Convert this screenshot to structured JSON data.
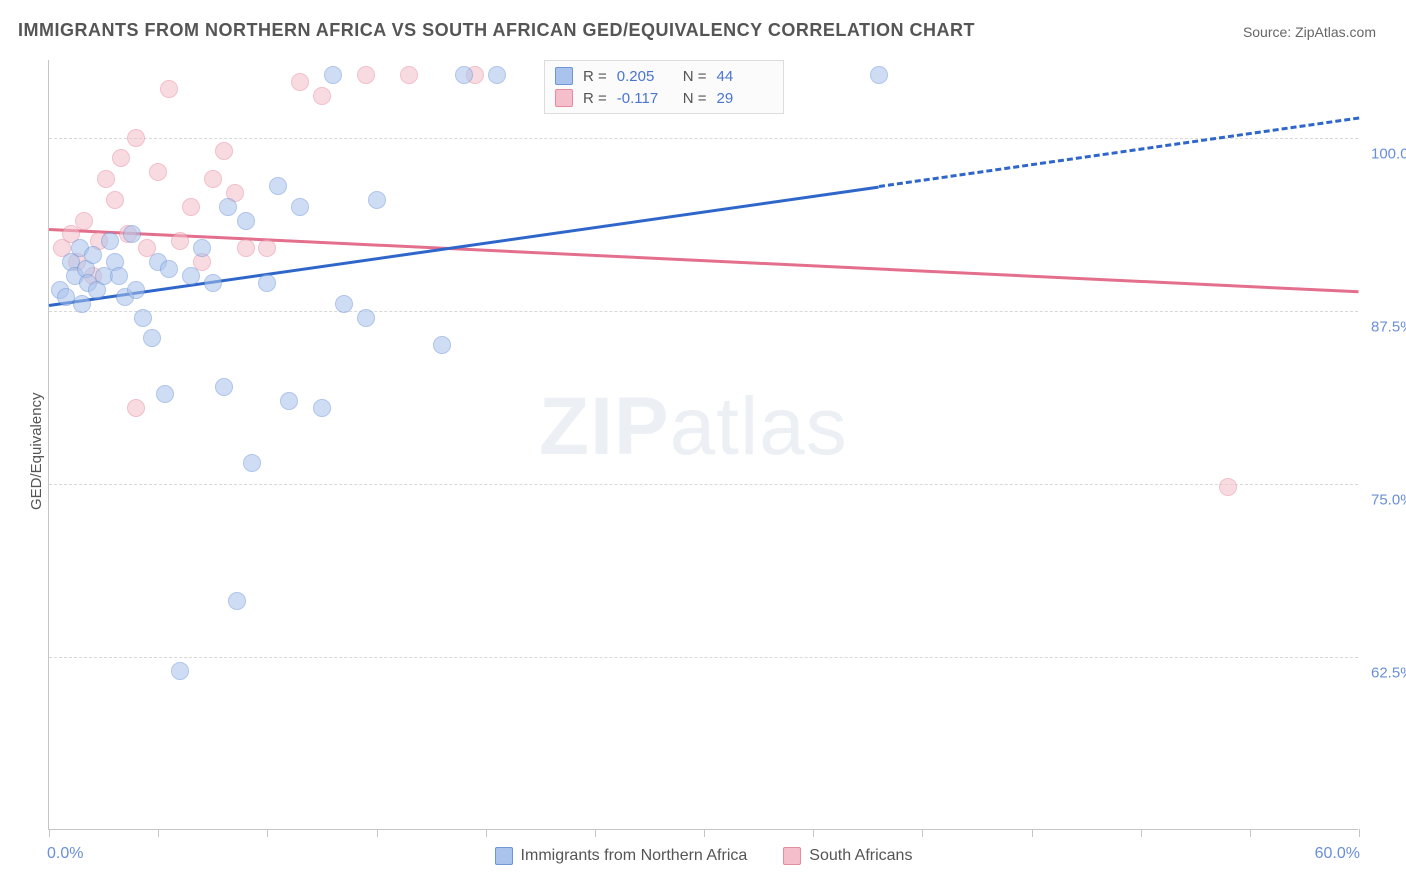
{
  "title": "IMMIGRANTS FROM NORTHERN AFRICA VS SOUTH AFRICAN GED/EQUIVALENCY CORRELATION CHART",
  "source_prefix": "Source: ",
  "source_name": "ZipAtlas.com",
  "chart": {
    "type": "scatter",
    "x_axis": {
      "min": 0.0,
      "max": 60.0,
      "label_min": "0.0%",
      "label_max": "60.0%",
      "ticks": [
        0,
        5,
        10,
        15,
        20,
        25,
        30,
        35,
        40,
        45,
        50,
        55,
        60
      ]
    },
    "y_axis": {
      "min": 50.0,
      "max": 105.6,
      "title": "GED/Equivalency",
      "grid": [
        62.5,
        75.0,
        87.5,
        100.0
      ],
      "tick_labels": [
        "62.5%",
        "75.0%",
        "87.5%",
        "100.0%"
      ]
    },
    "background_color": "#ffffff",
    "grid_color": "#d8d8d8",
    "axis_color": "#c5c5c5",
    "text_color_axis": "#6a8fd8",
    "marker_radius": 9,
    "marker_opacity": 0.55,
    "series": [
      {
        "id": "northern_africa",
        "label": "Immigrants from Northern Africa",
        "color_fill": "#a9c3ec",
        "color_stroke": "#6d95d8",
        "R": "0.205",
        "N": "44",
        "trend": {
          "y_at_xmin": 88.0,
          "y_at_xmax": 101.5,
          "solid_until_x": 38.0,
          "color": "#2f66c9",
          "width": 3
        },
        "points": [
          {
            "x": 0.5,
            "y": 89.0
          },
          {
            "x": 0.8,
            "y": 88.5
          },
          {
            "x": 1.0,
            "y": 91.0
          },
          {
            "x": 1.2,
            "y": 90.0
          },
          {
            "x": 1.4,
            "y": 92.0
          },
          {
            "x": 1.5,
            "y": 88.0
          },
          {
            "x": 1.7,
            "y": 90.5
          },
          {
            "x": 1.8,
            "y": 89.5
          },
          {
            "x": 2.0,
            "y": 91.5
          },
          {
            "x": 2.2,
            "y": 89.0
          },
          {
            "x": 2.5,
            "y": 90.0
          },
          {
            "x": 2.8,
            "y": 92.5
          },
          {
            "x": 3.0,
            "y": 91.0
          },
          {
            "x": 3.2,
            "y": 90.0
          },
          {
            "x": 3.5,
            "y": 88.5
          },
          {
            "x": 3.8,
            "y": 93.0
          },
          {
            "x": 4.0,
            "y": 89.0
          },
          {
            "x": 4.3,
            "y": 87.0
          },
          {
            "x": 4.7,
            "y": 85.5
          },
          {
            "x": 5.0,
            "y": 91.0
          },
          {
            "x": 5.3,
            "y": 81.5
          },
          {
            "x": 5.5,
            "y": 90.5
          },
          {
            "x": 6.0,
            "y": 61.5
          },
          {
            "x": 6.5,
            "y": 90.0
          },
          {
            "x": 7.0,
            "y": 92.0
          },
          {
            "x": 7.5,
            "y": 89.5
          },
          {
            "x": 8.0,
            "y": 82.0
          },
          {
            "x": 8.2,
            "y": 95.0
          },
          {
            "x": 8.6,
            "y": 66.5
          },
          {
            "x": 9.0,
            "y": 94.0
          },
          {
            "x": 9.3,
            "y": 76.5
          },
          {
            "x": 10.0,
            "y": 89.5
          },
          {
            "x": 10.5,
            "y": 96.5
          },
          {
            "x": 11.0,
            "y": 81.0
          },
          {
            "x": 11.5,
            "y": 95.0
          },
          {
            "x": 12.5,
            "y": 80.5
          },
          {
            "x": 13.5,
            "y": 88.0
          },
          {
            "x": 14.5,
            "y": 87.0
          },
          {
            "x": 15.0,
            "y": 95.5
          },
          {
            "x": 18.0,
            "y": 85.0
          },
          {
            "x": 19.0,
            "y": 104.5
          },
          {
            "x": 20.5,
            "y": 104.5
          },
          {
            "x": 38.0,
            "y": 104.5
          },
          {
            "x": 13.0,
            "y": 104.5
          }
        ]
      },
      {
        "id": "south_africans",
        "label": "South Africans",
        "color_fill": "#f4bfca",
        "color_stroke": "#e88ba0",
        "R": "-0.117",
        "N": "29",
        "trend": {
          "y_at_xmin": 93.5,
          "y_at_xmax": 89.0,
          "solid_until_x": 60.0,
          "color": "#e36f8c",
          "width": 3
        },
        "points": [
          {
            "x": 0.6,
            "y": 92.0
          },
          {
            "x": 1.0,
            "y": 93.0
          },
          {
            "x": 1.3,
            "y": 91.0
          },
          {
            "x": 1.6,
            "y": 94.0
          },
          {
            "x": 2.0,
            "y": 90.0
          },
          {
            "x": 2.3,
            "y": 92.5
          },
          {
            "x": 2.6,
            "y": 97.0
          },
          {
            "x": 3.0,
            "y": 95.5
          },
          {
            "x": 3.3,
            "y": 98.5
          },
          {
            "x": 3.6,
            "y": 93.0
          },
          {
            "x": 4.0,
            "y": 100.0
          },
          {
            "x": 4.0,
            "y": 80.5
          },
          {
            "x": 4.5,
            "y": 92.0
          },
          {
            "x": 5.0,
            "y": 97.5
          },
          {
            "x": 5.5,
            "y": 103.5
          },
          {
            "x": 6.0,
            "y": 92.5
          },
          {
            "x": 6.5,
            "y": 95.0
          },
          {
            "x": 7.0,
            "y": 91.0
          },
          {
            "x": 7.5,
            "y": 97.0
          },
          {
            "x": 8.0,
            "y": 99.0
          },
          {
            "x": 8.5,
            "y": 96.0
          },
          {
            "x": 9.0,
            "y": 92.0
          },
          {
            "x": 10.0,
            "y": 92.0
          },
          {
            "x": 11.5,
            "y": 104.0
          },
          {
            "x": 12.5,
            "y": 103.0
          },
          {
            "x": 14.5,
            "y": 104.5
          },
          {
            "x": 16.5,
            "y": 104.5
          },
          {
            "x": 19.5,
            "y": 104.5
          },
          {
            "x": 54.0,
            "y": 74.8
          }
        ]
      }
    ],
    "legend_top_labels": {
      "R_prefix": "R = ",
      "N_prefix": "N = "
    },
    "watermark": {
      "bold": "ZIP",
      "rest": "atlas"
    }
  }
}
